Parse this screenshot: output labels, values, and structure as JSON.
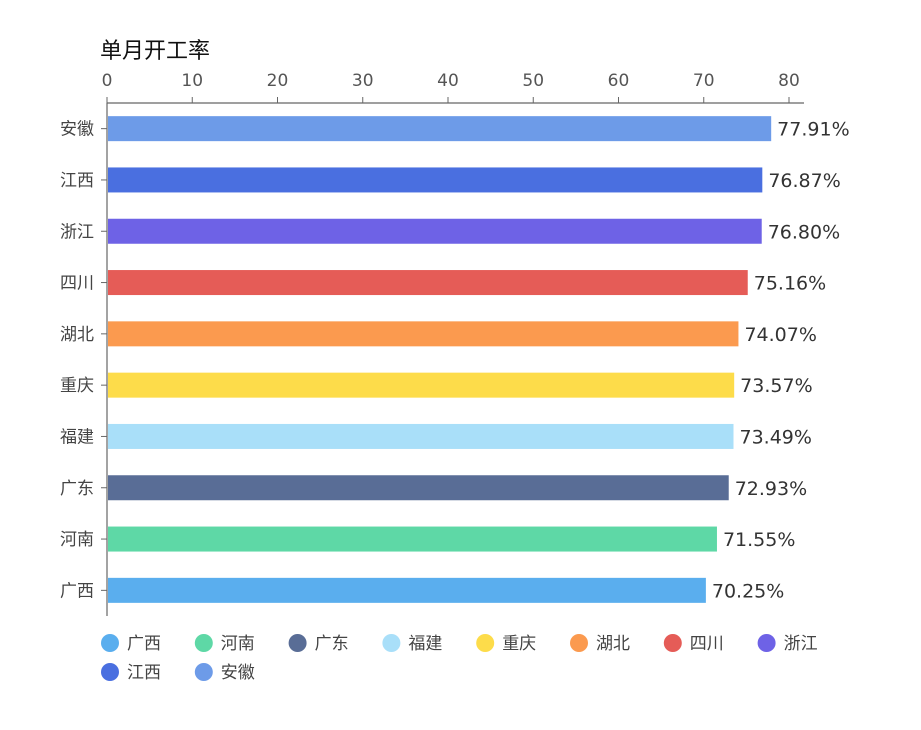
{
  "chart_data": {
    "type": "bar",
    "orientation": "horizontal",
    "title": "单月开工率",
    "xlim": [
      0,
      80
    ],
    "x_ticks": [
      "0",
      "10",
      "20",
      "30",
      "40",
      "50",
      "60",
      "70",
      "80"
    ],
    "x_axis_position": "top",
    "grid": false,
    "legend_position": "bottom-left",
    "categories": [
      "安徽",
      "江西",
      "浙江",
      "四川",
      "湖北",
      "重庆",
      "福建",
      "广东",
      "河南",
      "广西"
    ],
    "values": [
      77.91,
      76.87,
      76.8,
      75.16,
      74.07,
      73.57,
      73.49,
      72.93,
      71.55,
      70.25
    ],
    "value_labels": [
      "77.91%",
      "76.87%",
      "76.80%",
      "75.16%",
      "74.07%",
      "73.57%",
      "73.49%",
      "72.93%",
      "71.55%",
      "70.25%"
    ],
    "colors": [
      "#6d9be8",
      "#4a6fe0",
      "#6e62e6",
      "#e55c57",
      "#fb9a4f",
      "#fddc4a",
      "#a9dff9",
      "#596d96",
      "#5ed8a6",
      "#5aaeee"
    ],
    "legend": [
      {
        "name": "广西",
        "color": "#5aaeee"
      },
      {
        "name": "河南",
        "color": "#5ed8a6"
      },
      {
        "name": "广东",
        "color": "#596d96"
      },
      {
        "name": "福建",
        "color": "#a9dff9"
      },
      {
        "name": "重庆",
        "color": "#fddc4a"
      },
      {
        "name": "湖北",
        "color": "#fb9a4f"
      },
      {
        "name": "四川",
        "color": "#e55c57"
      },
      {
        "name": "浙江",
        "color": "#6e62e6"
      },
      {
        "name": "江西",
        "color": "#4a6fe0"
      },
      {
        "name": "安徽",
        "color": "#6d9be8"
      }
    ]
  }
}
